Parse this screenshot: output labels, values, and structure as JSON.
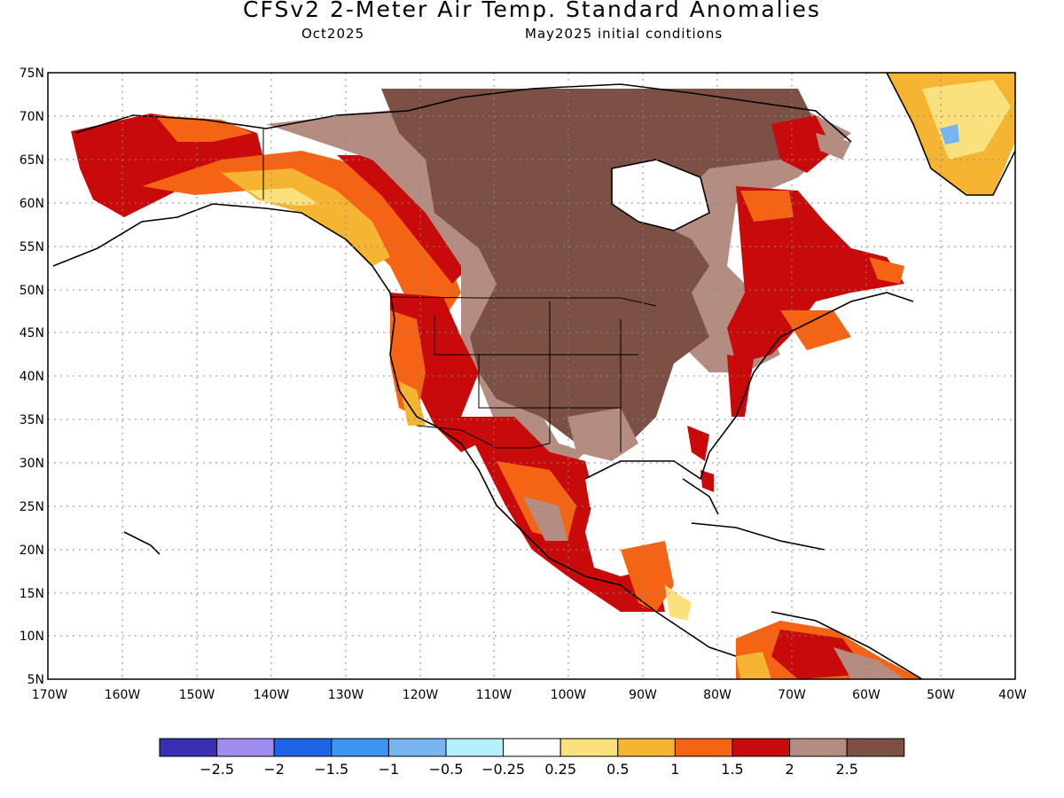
{
  "title": "CFSv2 2-Meter Air Temp. Standard Anomalies",
  "subtitle_left": "Oct2025",
  "subtitle_right": "May2025 initial conditions",
  "map": {
    "lon_range": [
      -170,
      -40
    ],
    "lat_range": [
      5,
      75
    ],
    "lat_labels": [
      "75N",
      "70N",
      "65N",
      "60N",
      "55N",
      "50N",
      "45N",
      "40N",
      "35N",
      "30N",
      "25N",
      "20N",
      "15N",
      "10N",
      "5N"
    ],
    "lon_labels": [
      "170W",
      "160W",
      "150W",
      "140W",
      "130W",
      "120W",
      "110W",
      "100W",
      "90W",
      "80W",
      "70W",
      "60W",
      "50W",
      "40W"
    ],
    "grid": "dotted"
  },
  "colorbar": {
    "colors": [
      "#3a2fb4",
      "#a08cf0",
      "#1e64e6",
      "#3c96f0",
      "#78b4f0",
      "#b4f0fa",
      "#ffffff",
      "#fae17d",
      "#f5b432",
      "#f56414",
      "#c80a0a",
      "#b48c82",
      "#7d5046"
    ],
    "labels": [
      "−2.5",
      "−2",
      "−1.5",
      "−1",
      "−0.5",
      "−0.25",
      "0.25",
      "0.5",
      "1",
      "1.5",
      "2",
      "2.5"
    ]
  }
}
